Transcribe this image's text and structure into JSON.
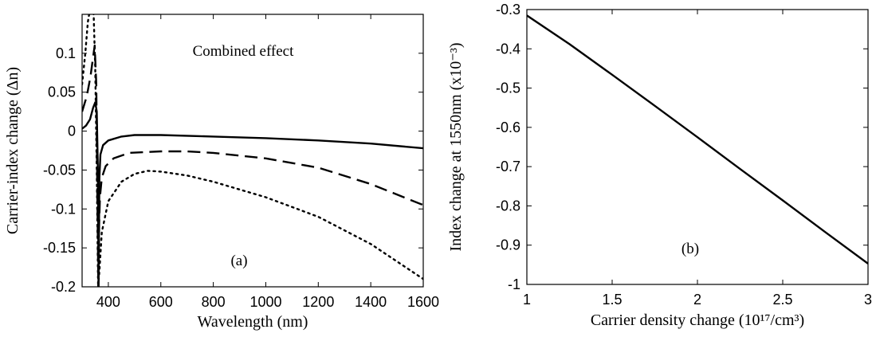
{
  "chart_data": [
    {
      "type": "line",
      "panel": "(a)",
      "annotation": "Combined effect",
      "xlabel": "Wavelength (nm)",
      "ylabel": "Carrier-index change (Δn)",
      "xlim": [
        300,
        1600
      ],
      "ylim": [
        -0.2,
        0.15
      ],
      "xticks": [
        400,
        600,
        800,
        1000,
        1200,
        1400,
        1600
      ],
      "yticks": [
        0.1,
        0.05,
        0,
        -0.05,
        -0.1,
        -0.15,
        -0.2
      ],
      "xtick_labels": [
        "400",
        "600",
        "800",
        "1000",
        "1200",
        "1400",
        "1600"
      ],
      "ytick_labels": [
        "0.1",
        "0.05",
        "0",
        "-0.05",
        "-0.1",
        "-0.15",
        "-0.2"
      ],
      "grid": false,
      "series": [
        {
          "style": "solid",
          "x": [
            300,
            315,
            330,
            342,
            350,
            356,
            360,
            363,
            366,
            370,
            380,
            400,
            450,
            500,
            600,
            800,
            1000,
            1200,
            1400,
            1600
          ],
          "y": [
            0.003,
            0.007,
            0.015,
            0.03,
            0.037,
            0.025,
            -0.05,
            -0.2,
            -0.06,
            -0.03,
            -0.018,
            -0.012,
            -0.007,
            -0.005,
            -0.005,
            -0.007,
            -0.009,
            -0.012,
            -0.016,
            -0.022
          ]
        },
        {
          "style": "dashed",
          "x": [
            300,
            318,
            332,
            342,
            348,
            354,
            358,
            362,
            365,
            368,
            375,
            390,
            420,
            480,
            600,
            700,
            800,
            1000,
            1200,
            1400,
            1600
          ],
          "y": [
            0.025,
            0.045,
            0.07,
            0.095,
            0.11,
            0.06,
            -0.08,
            -0.2,
            -0.12,
            -0.085,
            -0.06,
            -0.045,
            -0.035,
            -0.028,
            -0.026,
            -0.026,
            -0.028,
            -0.035,
            -0.047,
            -0.068,
            -0.095
          ]
        },
        {
          "style": "dotted",
          "x": [
            300,
            312,
            322,
            332,
            338,
            344,
            350,
            356,
            361,
            366,
            375,
            400,
            450,
            500,
            550,
            600,
            700,
            800,
            1000,
            1200,
            1400,
            1600
          ],
          "y": [
            0.06,
            0.1,
            0.14,
            0.16,
            0.16,
            0.15,
            0.08,
            -0.05,
            -0.2,
            -0.18,
            -0.13,
            -0.09,
            -0.065,
            -0.055,
            -0.051,
            -0.052,
            -0.057,
            -0.065,
            -0.085,
            -0.11,
            -0.145,
            -0.19
          ]
        }
      ]
    },
    {
      "type": "line",
      "panel": "(b)",
      "xlabel": "Carrier density change (10¹⁷/cm³)",
      "ylabel": "Index change at 1550nm (x10⁻³)",
      "xlim": [
        1,
        3
      ],
      "ylim": [
        -1,
        -0.3
      ],
      "xticks": [
        1,
        1.5,
        2,
        2.5,
        3
      ],
      "yticks": [
        -0.3,
        -0.4,
        -0.5,
        -0.6,
        -0.7,
        -0.8,
        -0.9,
        -1
      ],
      "xtick_labels": [
        "1",
        "1.5",
        "2",
        "2.5",
        "3"
      ],
      "ytick_labels": [
        "-0.3",
        "-0.4",
        "-0.5",
        "-0.6",
        "-0.7",
        "-0.8",
        "-0.9",
        "-1"
      ],
      "grid": false,
      "series": [
        {
          "style": "solid",
          "x": [
            1,
            1.25,
            1.5,
            1.75,
            2,
            2.25,
            2.5,
            2.75,
            3
          ],
          "y": [
            -0.315,
            -0.388,
            -0.466,
            -0.545,
            -0.625,
            -0.706,
            -0.786,
            -0.867,
            -0.947
          ]
        }
      ]
    }
  ]
}
